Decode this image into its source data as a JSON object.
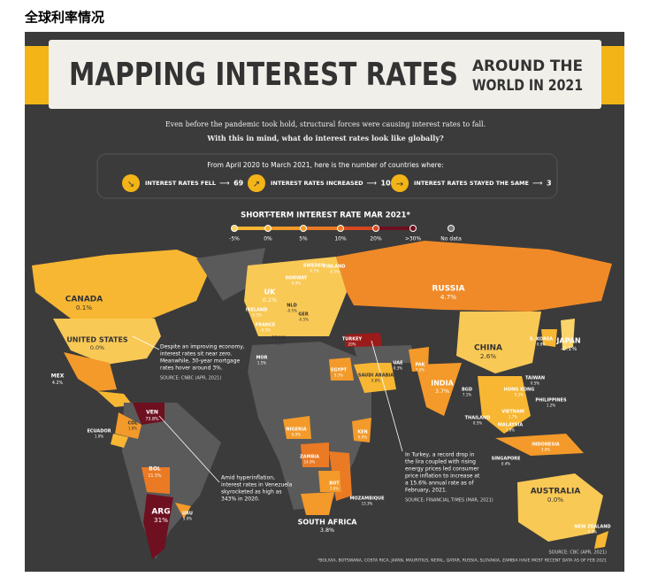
{
  "page_title": "全球利率情况",
  "header": {
    "title": "MAPPING INTEREST RATES",
    "subtitle_lines": [
      "AROUND THE",
      "WORLD IN 2021"
    ]
  },
  "intro": [
    "Even before the pandemic took hold, structural forces were causing interest rates to fall.",
    "With this in mind, what do interest rates look like globally?"
  ],
  "summary": {
    "heading": "From April 2020 to March 2021, here is the number of countries where:",
    "items": [
      {
        "label": "INTEREST RATES FELL",
        "count": 69
      },
      {
        "label": "INTEREST RATES INCREASED",
        "count": 10
      },
      {
        "label": "INTEREST RATES STAYED THE SAME",
        "count": 3
      }
    ]
  },
  "legend": {
    "title": "SHORT-TERM INTEREST RATE MAR 2021*",
    "items": [
      {
        "label": "-5%",
        "color": "#fbd46a"
      },
      {
        "label": "0%",
        "color": "#f7b733"
      },
      {
        "label": "5%",
        "color": "#f39a2a"
      },
      {
        "label": "10%",
        "color": "#ea7a24"
      },
      {
        "label": "20%",
        "color": "#d6481f"
      },
      {
        "label": ">30%",
        "color": "#6e1020"
      },
      {
        "label": "No data",
        "color": "#777777"
      }
    ]
  },
  "countries": [
    {
      "name": "CANADA",
      "rate": "0.1%"
    },
    {
      "name": "UNITED STATES",
      "rate": "0.0%"
    },
    {
      "name": "MEX",
      "rate": "4.2%"
    },
    {
      "name": "ECUADOR",
      "rate": "1.0%"
    },
    {
      "name": "VEN",
      "rate": "73.8%"
    },
    {
      "name": "COL",
      "rate": "1.8%"
    },
    {
      "name": "BOL",
      "rate": "11.5%"
    },
    {
      "name": "ARG",
      "rate": "31%"
    },
    {
      "name": "URU",
      "rate": "5.0%"
    },
    {
      "name": "UK",
      "rate": "0.1%"
    },
    {
      "name": "IRELAND",
      "rate": "-0.5%"
    },
    {
      "name": "FRANCE",
      "rate": "-0.5%"
    },
    {
      "name": "SPAIN",
      "rate": "-0.5%"
    },
    {
      "name": "NLD",
      "rate": "-0.5%"
    },
    {
      "name": "GER",
      "rate": "-0.5%"
    },
    {
      "name": "NORWAY",
      "rate": "0.4%"
    },
    {
      "name": "SWEDEN",
      "rate": "-0.2%"
    },
    {
      "name": "FINLAND",
      "rate": "-0.5%"
    },
    {
      "name": "MOR",
      "rate": "1.5%"
    },
    {
      "name": "TURKEY",
      "rate": "20%"
    },
    {
      "name": "EGYPT",
      "rate": "9.3%"
    },
    {
      "name": "SAUDI ARABIA",
      "rate": "0.8%"
    },
    {
      "name": "UAE",
      "rate": "0.3%"
    },
    {
      "name": "PAK",
      "rate": "7.0%"
    },
    {
      "name": "INDIA",
      "rate": "3.7%"
    },
    {
      "name": "BGD",
      "rate": "7.1%"
    },
    {
      "name": "NIGERIA",
      "rate": "6.9%"
    },
    {
      "name": "KEN",
      "rate": "6.9%"
    },
    {
      "name": "ZAMBIA",
      "rate": "14.9%"
    },
    {
      "name": "BOT",
      "rate": "3.6%"
    },
    {
      "name": "MOZAMBIQUE",
      "rate": "13.3%"
    },
    {
      "name": "SOUTH AFRICA",
      "rate": "3.8%"
    },
    {
      "name": "RUSSIA",
      "rate": "4.7%"
    },
    {
      "name": "CHINA",
      "rate": "2.6%"
    },
    {
      "name": "S. KOREA",
      "rate": "0.8%"
    },
    {
      "name": "JAPAN",
      "rate": "-0.1%"
    },
    {
      "name": "TAIWAN",
      "rate": "0.5%"
    },
    {
      "name": "HONG KONG",
      "rate": "0.2%"
    },
    {
      "name": "PHILIPPINES",
      "rate": "1.2%"
    },
    {
      "name": "VIETNAM",
      "rate": "1.7%"
    },
    {
      "name": "THAILAND",
      "rate": "0.5%"
    },
    {
      "name": "MALAYSIA",
      "rate": "1.9%"
    },
    {
      "name": "SINGAPORE",
      "rate": "0.4%"
    },
    {
      "name": "INDONESIA",
      "rate": "3.8%"
    },
    {
      "name": "AUSTRALIA",
      "rate": "0.0%"
    },
    {
      "name": "NEW ZEALAND",
      "rate": "0.3%"
    }
  ],
  "annotations": [
    {
      "lines": [
        "Despite an improving economy,",
        "interest rates sit near zero.",
        "Meanwhile, 30-year mortgage",
        "rates hover around 3%."
      ],
      "source": "SOURCE: CNBC (APR, 2021)"
    },
    {
      "lines": [
        "Amid hyperinflation,",
        "interest rates in Venezuela",
        "skyrocketed as high as",
        "343% in 2020."
      ]
    },
    {
      "lines": [
        "In Turkey, a record drop in",
        "the lira coupled with rising",
        "energy prices led consumer",
        "price inflation to increase at",
        "a 15.6% annual rate as of",
        "February, 2021."
      ],
      "source": "SOURCE: FINANCIAL TIMES (MAR, 2021)"
    }
  ],
  "footer": {
    "source": "SOURCE: CBC (APR, 2021)",
    "note": "*BOLIVIA, BOTSWANA, COSTA RICA, JAPAN, MAURITIUS, NEPAL, QATAR, RUSSIA, SLOVAKIA, ZAMBIA HAVE MOST RECENT DATA AS OF FEB 2021"
  }
}
